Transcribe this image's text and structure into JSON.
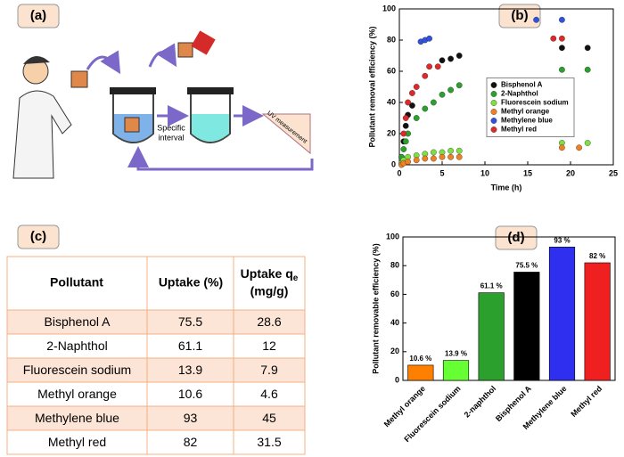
{
  "panel_labels": [
    "(a)",
    "(b)",
    "(c)",
    "(d)"
  ],
  "diagram": {
    "steps": [
      "Specific",
      "interval"
    ],
    "measurement": "UV measurement"
  },
  "table": {
    "header": [
      "Pollutant",
      "Uptake (%)",
      {
        "text": "Uptake q",
        "sub": "e",
        "unit": "(mg/g)"
      }
    ],
    "rows": [
      [
        "Bisphenol A",
        "75.5",
        "28.6"
      ],
      [
        "2-Naphthol",
        "61.1",
        "12"
      ],
      [
        "Fluorescein sodium",
        "13.9",
        "7.9"
      ],
      [
        "Methyl orange",
        "10.6",
        "4.6"
      ],
      [
        "Methylene blue",
        "93",
        "45"
      ],
      [
        "Methyl red",
        "82",
        "31.5"
      ]
    ]
  },
  "chart_data": [
    {
      "type": "scatter",
      "x_label": "Time (h)",
      "y_label": "Pollutant removal efficiency (%)",
      "xlim": [
        0,
        25
      ],
      "xticks": [
        0,
        5,
        10,
        15,
        20,
        25
      ],
      "ylim": [
        0,
        100
      ],
      "yticks": [
        0,
        20,
        40,
        60,
        80,
        100
      ],
      "legend": "center right",
      "series": [
        {
          "name": "Bisphenol A",
          "color": "#111111",
          "x": [
            0.25,
            0.5,
            0.75,
            1,
            1.5,
            5,
            6,
            7,
            19,
            22
          ],
          "values": [
            5,
            15,
            25,
            32,
            38,
            67,
            68,
            70,
            75,
            75
          ]
        },
        {
          "name": "2-Naphthol",
          "color": "#2ca02c",
          "x": [
            0.25,
            0.5,
            0.75,
            1,
            2,
            3,
            4,
            5,
            6,
            7,
            19,
            22
          ],
          "values": [
            5,
            10,
            15,
            20,
            30,
            36,
            40,
            45,
            48,
            51,
            61,
            61
          ]
        },
        {
          "name": "Fluorescein sodium",
          "color": "#7ee040",
          "x": [
            0.25,
            0.5,
            1,
            2,
            3,
            4,
            5,
            6,
            7,
            19,
            22
          ],
          "values": [
            1,
            3,
            5,
            6,
            7,
            8,
            8,
            9,
            9,
            14,
            14
          ]
        },
        {
          "name": "Methyl orange",
          "color": "#f08020",
          "x": [
            0.25,
            0.5,
            1,
            2,
            3,
            4,
            5,
            6,
            7,
            19,
            21
          ],
          "values": [
            0,
            1,
            2,
            3,
            4,
            4,
            5,
            5,
            5,
            11,
            11
          ]
        },
        {
          "name": "Methylene blue",
          "color": "#3050e0",
          "x": [
            2.5,
            3,
            3.5,
            16,
            19
          ],
          "values": [
            79,
            80,
            81,
            93,
            93
          ]
        },
        {
          "name": "Methyl red",
          "color": "#e02828",
          "x": [
            0.5,
            0.75,
            1,
            1.5,
            2,
            3,
            3.5,
            4.5,
            18,
            19
          ],
          "values": [
            20,
            30,
            40,
            46,
            50,
            57,
            63,
            63,
            81,
            81
          ]
        }
      ]
    },
    {
      "type": "bar",
      "y_label": "Pollutant removable efficiency (%)",
      "categories": [
        "Methyl orange",
        "Fluorescein sodium",
        "2-naphthol",
        "Bisphenol A",
        "Methylene blue",
        "Methyl red"
      ],
      "values": [
        10.6,
        13.9,
        61.1,
        75.5,
        93,
        82
      ],
      "value_labels": [
        "10.6 %",
        "13.9 %",
        "61.1 %",
        "75.5 %",
        "93 %",
        "82 %"
      ],
      "colors": [
        "#ff7f00",
        "#66ff33",
        "#2ca02c",
        "#000000",
        "#2f2ff0",
        "#f02020"
      ],
      "ylim": [
        0,
        100
      ],
      "yticks": [
        0,
        20,
        40,
        60,
        80,
        100
      ]
    }
  ]
}
